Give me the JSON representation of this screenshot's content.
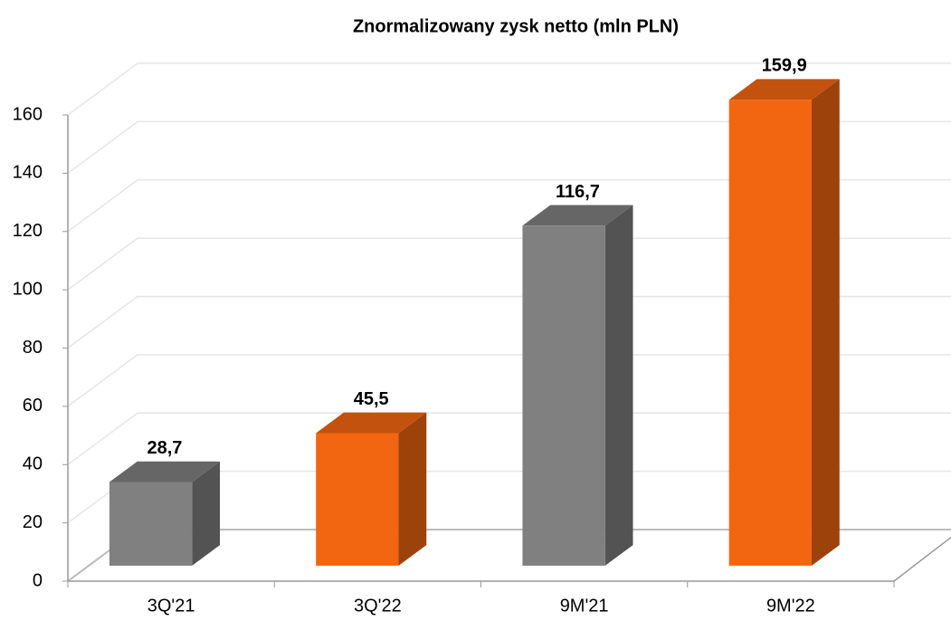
{
  "chart_data": {
    "type": "bar3d",
    "title": "Znormalizowany zysk netto (mln PLN)",
    "categories": [
      "3Q'21",
      "3Q'22",
      "9M'21",
      "9M'22"
    ],
    "values": [
      28.7,
      45.5,
      116.7,
      159.9
    ],
    "value_labels": [
      "28,7",
      "45,5",
      "116,7",
      "159,9"
    ],
    "colors": [
      "#808080",
      "#f26611",
      "#808080",
      "#f26611"
    ],
    "ylim": [
      0,
      160
    ],
    "yticks": [
      0,
      20,
      40,
      60,
      80,
      100,
      120,
      140,
      160
    ],
    "grid": true
  }
}
